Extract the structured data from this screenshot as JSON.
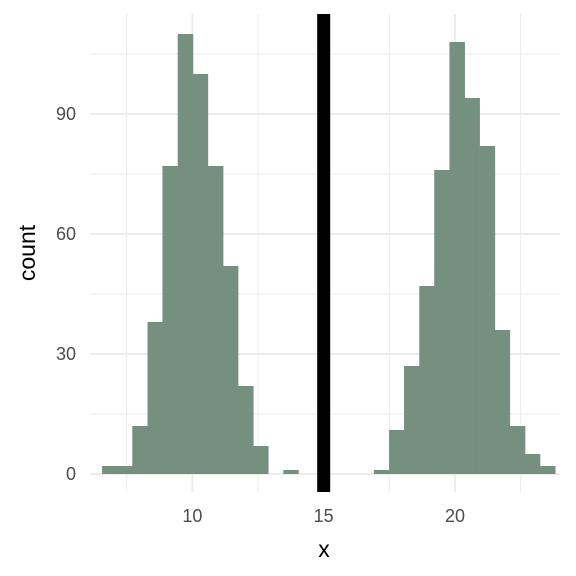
{
  "chart_data": {
    "type": "bar",
    "title": "",
    "xlabel": "x",
    "ylabel": "count",
    "grid": true,
    "xlim": [
      6.1,
      24.0
    ],
    "ylim": [
      -4.5,
      115
    ],
    "x_ticks": [
      10,
      15,
      20
    ],
    "x_tick_labels": [
      "10",
      "15",
      "20"
    ],
    "x_minor_grid": [
      7.5,
      12.5,
      17.5,
      22.5
    ],
    "y_ticks": [
      0,
      30,
      60,
      90
    ],
    "y_tick_labels": [
      "0",
      "30",
      "60",
      "90"
    ],
    "y_minor_grid": [
      15,
      45,
      75,
      105
    ],
    "bin_width": 0.575,
    "bins": [
      {
        "x0": 6.56,
        "value": 2
      },
      {
        "x0": 7.14,
        "value": 2
      },
      {
        "x0": 7.71,
        "value": 12
      },
      {
        "x0": 8.29,
        "value": 38
      },
      {
        "x0": 8.86,
        "value": 77
      },
      {
        "x0": 9.44,
        "value": 110
      },
      {
        "x0": 10.01,
        "value": 100
      },
      {
        "x0": 10.59,
        "value": 77
      },
      {
        "x0": 11.16,
        "value": 52
      },
      {
        "x0": 11.74,
        "value": 22
      },
      {
        "x0": 12.31,
        "value": 7
      },
      {
        "x0": 12.89,
        "value": 0
      },
      {
        "x0": 13.46,
        "value": 1
      },
      {
        "x0": 14.04,
        "value": 0
      },
      {
        "x0": 14.61,
        "value": 0
      },
      {
        "x0": 15.19,
        "value": 0
      },
      {
        "x0": 15.76,
        "value": 0
      },
      {
        "x0": 16.34,
        "value": 0
      },
      {
        "x0": 16.91,
        "value": 1
      },
      {
        "x0": 17.49,
        "value": 11
      },
      {
        "x0": 18.06,
        "value": 27
      },
      {
        "x0": 18.64,
        "value": 47
      },
      {
        "x0": 19.21,
        "value": 76
      },
      {
        "x0": 19.79,
        "value": 108
      },
      {
        "x0": 20.36,
        "value": 94
      },
      {
        "x0": 20.94,
        "value": 82
      },
      {
        "x0": 21.51,
        "value": 36
      },
      {
        "x0": 22.09,
        "value": 12
      },
      {
        "x0": 22.66,
        "value": 5
      },
      {
        "x0": 23.24,
        "value": 2
      }
    ],
    "vline": {
      "x": 15,
      "color": "#000000"
    },
    "colors": {
      "bar_fill": "#75907f",
      "grid": "#ebebeb",
      "background": "#ffffff",
      "tick_text": "#4d4d4d",
      "axis_title_text": "#000000"
    }
  }
}
